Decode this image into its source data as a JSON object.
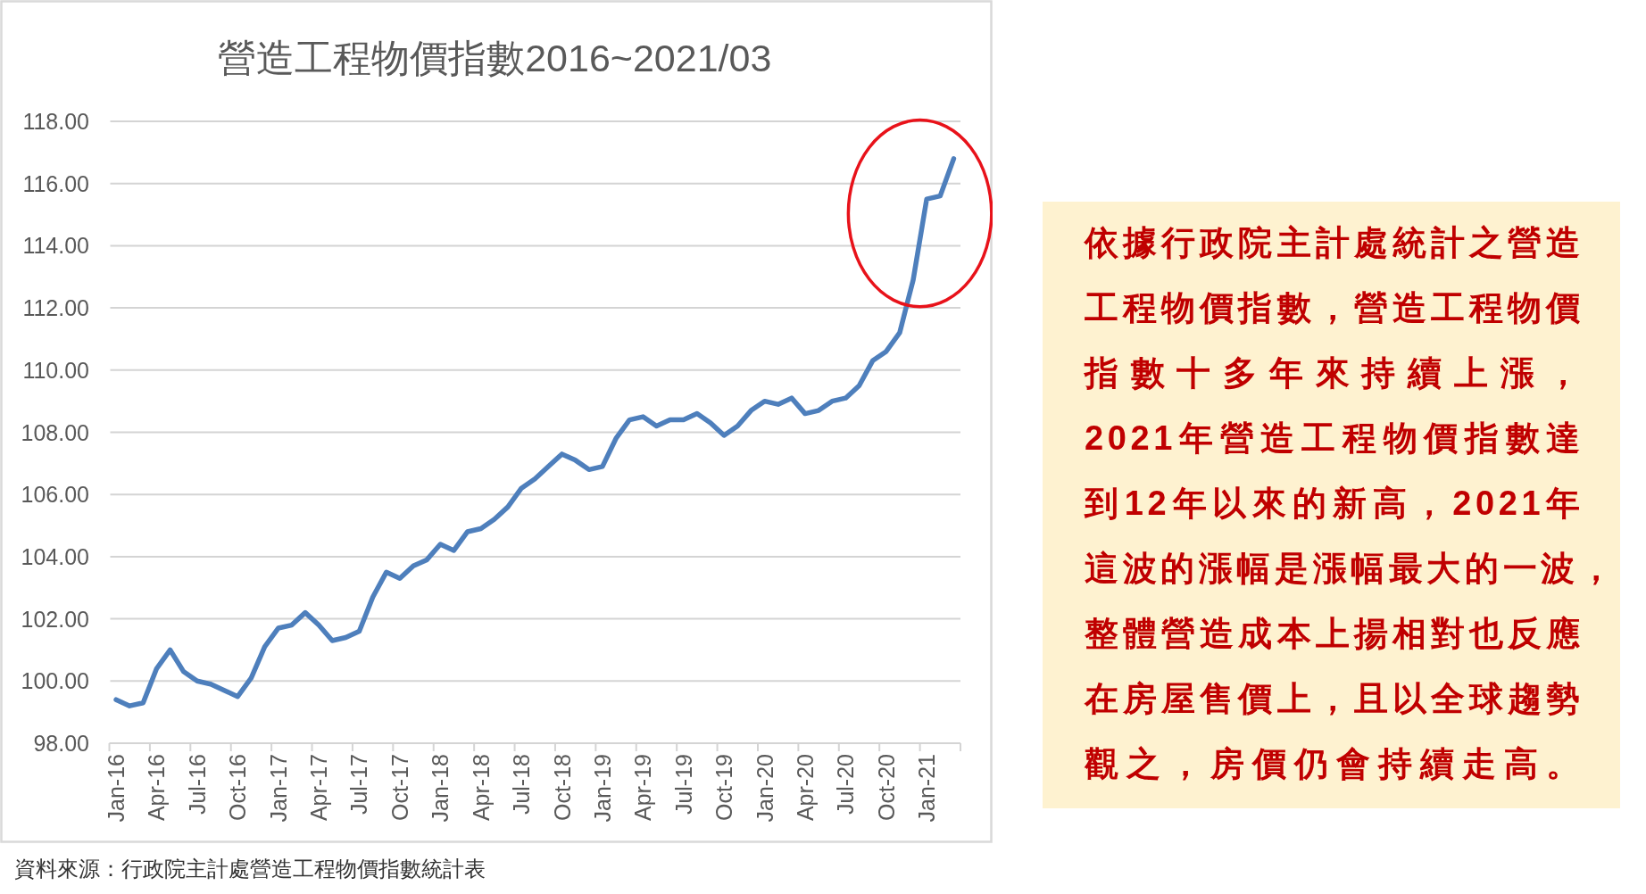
{
  "chart_data": [
    {
      "type": "line",
      "title": "營造工程物價指數2016~2021/03",
      "categories": [
        "Jan-16",
        null,
        null,
        "Apr-16",
        null,
        null,
        "Jul-16",
        null,
        null,
        "Oct-16",
        null,
        null,
        "Jan-17",
        null,
        null,
        "Apr-17",
        null,
        null,
        "Jul-17",
        null,
        null,
        "Oct-17",
        null,
        null,
        "Jan-18",
        null,
        null,
        "Apr-18",
        null,
        null,
        "Jul-18",
        null,
        null,
        "Oct-18",
        null,
        null,
        "Jan-19",
        null,
        null,
        "Apr-19",
        null,
        null,
        "Jul-19",
        null,
        null,
        "Oct-19",
        null,
        null,
        "Jan-20",
        null,
        null,
        "Apr-20",
        null,
        null,
        "Jul-20",
        null,
        null,
        "Oct-20",
        null,
        null,
        "Jan-21",
        null,
        null
      ],
      "values": [
        99.4,
        99.2,
        99.3,
        100.4,
        101.0,
        100.3,
        100.0,
        99.9,
        99.7,
        99.5,
        100.1,
        101.1,
        101.7,
        101.8,
        102.2,
        101.8,
        101.3,
        101.4,
        101.6,
        102.7,
        103.5,
        103.3,
        103.7,
        103.9,
        104.4,
        104.2,
        104.8,
        104.9,
        105.2,
        105.6,
        106.2,
        106.5,
        106.9,
        107.3,
        107.1,
        106.8,
        106.9,
        107.8,
        108.4,
        108.5,
        108.2,
        108.4,
        108.4,
        108.6,
        108.3,
        107.9,
        108.2,
        108.7,
        109.0,
        108.9,
        109.1,
        108.6,
        108.7,
        109.0,
        109.1,
        109.5,
        110.3,
        110.6,
        111.2,
        112.9,
        115.5,
        115.6,
        116.8
      ],
      "color": "#4e7fbc",
      "line_style": "solid",
      "ylim": [
        98,
        118
      ],
      "yticks": [
        {
          "value": 98,
          "label": "98.00"
        },
        {
          "value": 100,
          "label": "100.00"
        },
        {
          "value": 102,
          "label": "102.00"
        },
        {
          "value": 104,
          "label": "104.00"
        },
        {
          "value": 106,
          "label": "106.00"
        },
        {
          "value": 108,
          "label": "108.00"
        },
        {
          "value": 110,
          "label": "110.00"
        },
        {
          "value": 112,
          "label": "112.00"
        },
        {
          "value": 114,
          "label": "114.00"
        },
        {
          "value": 116,
          "label": "116.00"
        },
        {
          "value": 118,
          "label": "118.00"
        }
      ],
      "grid": "y",
      "annotations": [
        "資料來源：行政院主計處營造工程物價指數統計表"
      ]
    },
    {
      "type": "other",
      "annotations": [
        "依據行政院主計處統計之營造工程物價指數，營造工程物價指數十多年來持續上漲，2021年營造工程物價指數達到12年以來的新高，2021年這波的漲幅是漲幅最大的一波，整體營造成本上揚相對也反應在房屋售價上，且以全球趨勢觀之，房價仍會持續走高。"
      ]
    }
  ]
}
